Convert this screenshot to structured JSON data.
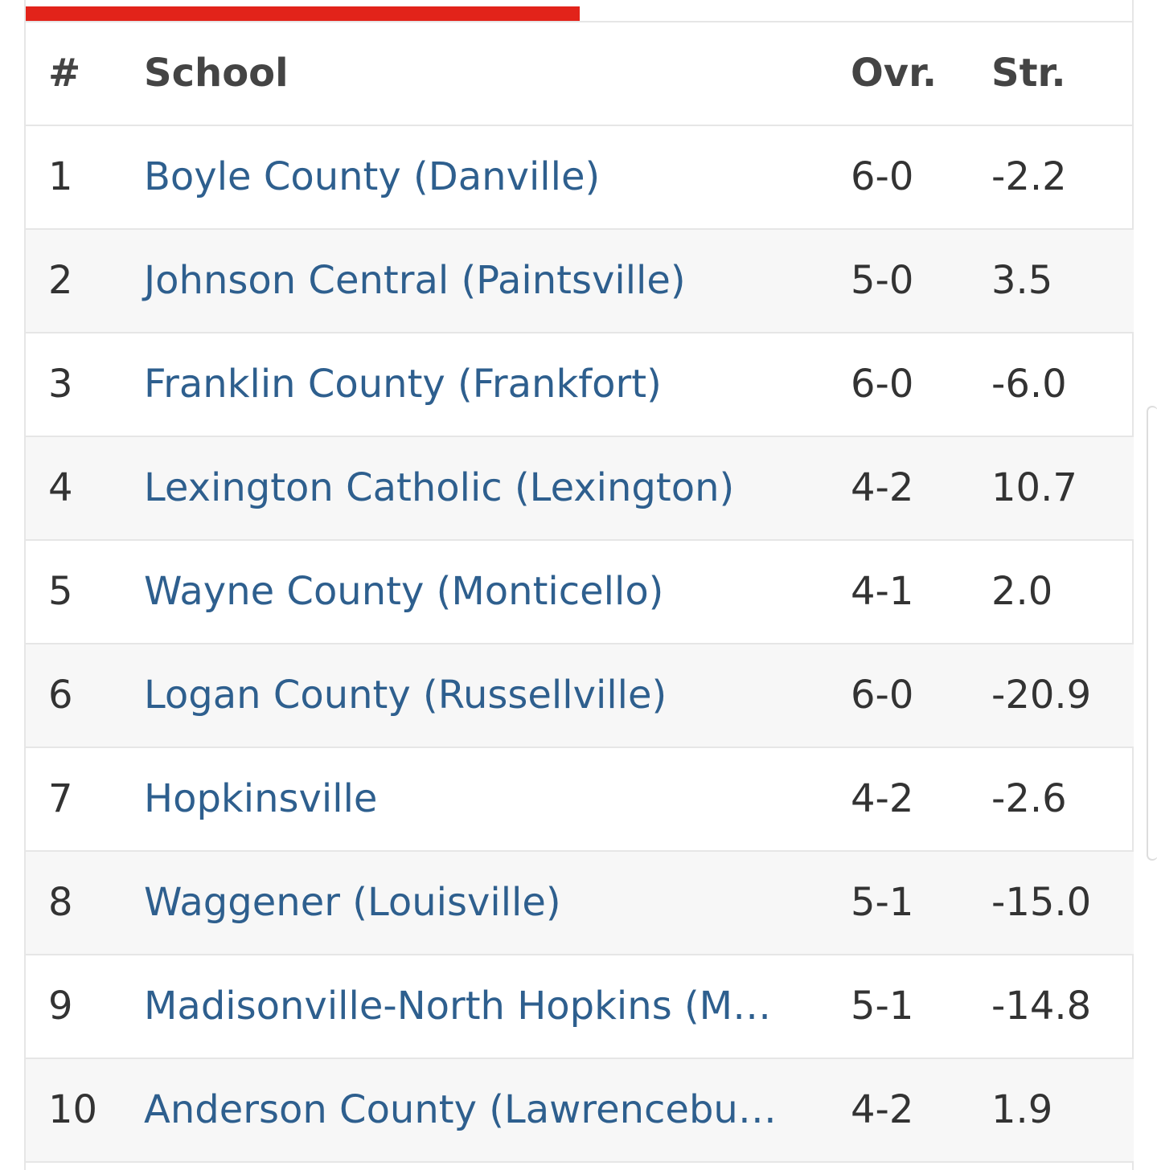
{
  "table": {
    "header": [
      "#",
      "School",
      "Ovr.",
      "Str."
    ],
    "rows": [
      [
        "1",
        "Boyle County (Danville)",
        "6-0",
        "-2.2"
      ],
      [
        "2",
        "Johnson Central (Paintsville)",
        "5-0",
        "3.5"
      ],
      [
        "3",
        "Franklin County (Frankfort)",
        "6-0",
        "-6.0"
      ],
      [
        "4",
        "Lexington Catholic (Lexington)",
        "4-2",
        "10.7"
      ],
      [
        "5",
        "Wayne County (Monticello)",
        "4-1",
        "2.0"
      ],
      [
        "6",
        "Logan County (Russellville)",
        "6-0",
        "-20.9"
      ],
      [
        "7",
        "Hopkinsville",
        "4-2",
        "-2.6"
      ],
      [
        "8",
        "Waggener (Louisville)",
        "5-1",
        "-15.0"
      ],
      [
        "9",
        "Madisonville-North Hopkins (M…",
        "5-1",
        "-14.8"
      ],
      [
        "10",
        "Anderson County (Lawrencebu…",
        "4-2",
        "1.9"
      ]
    ]
  }
}
